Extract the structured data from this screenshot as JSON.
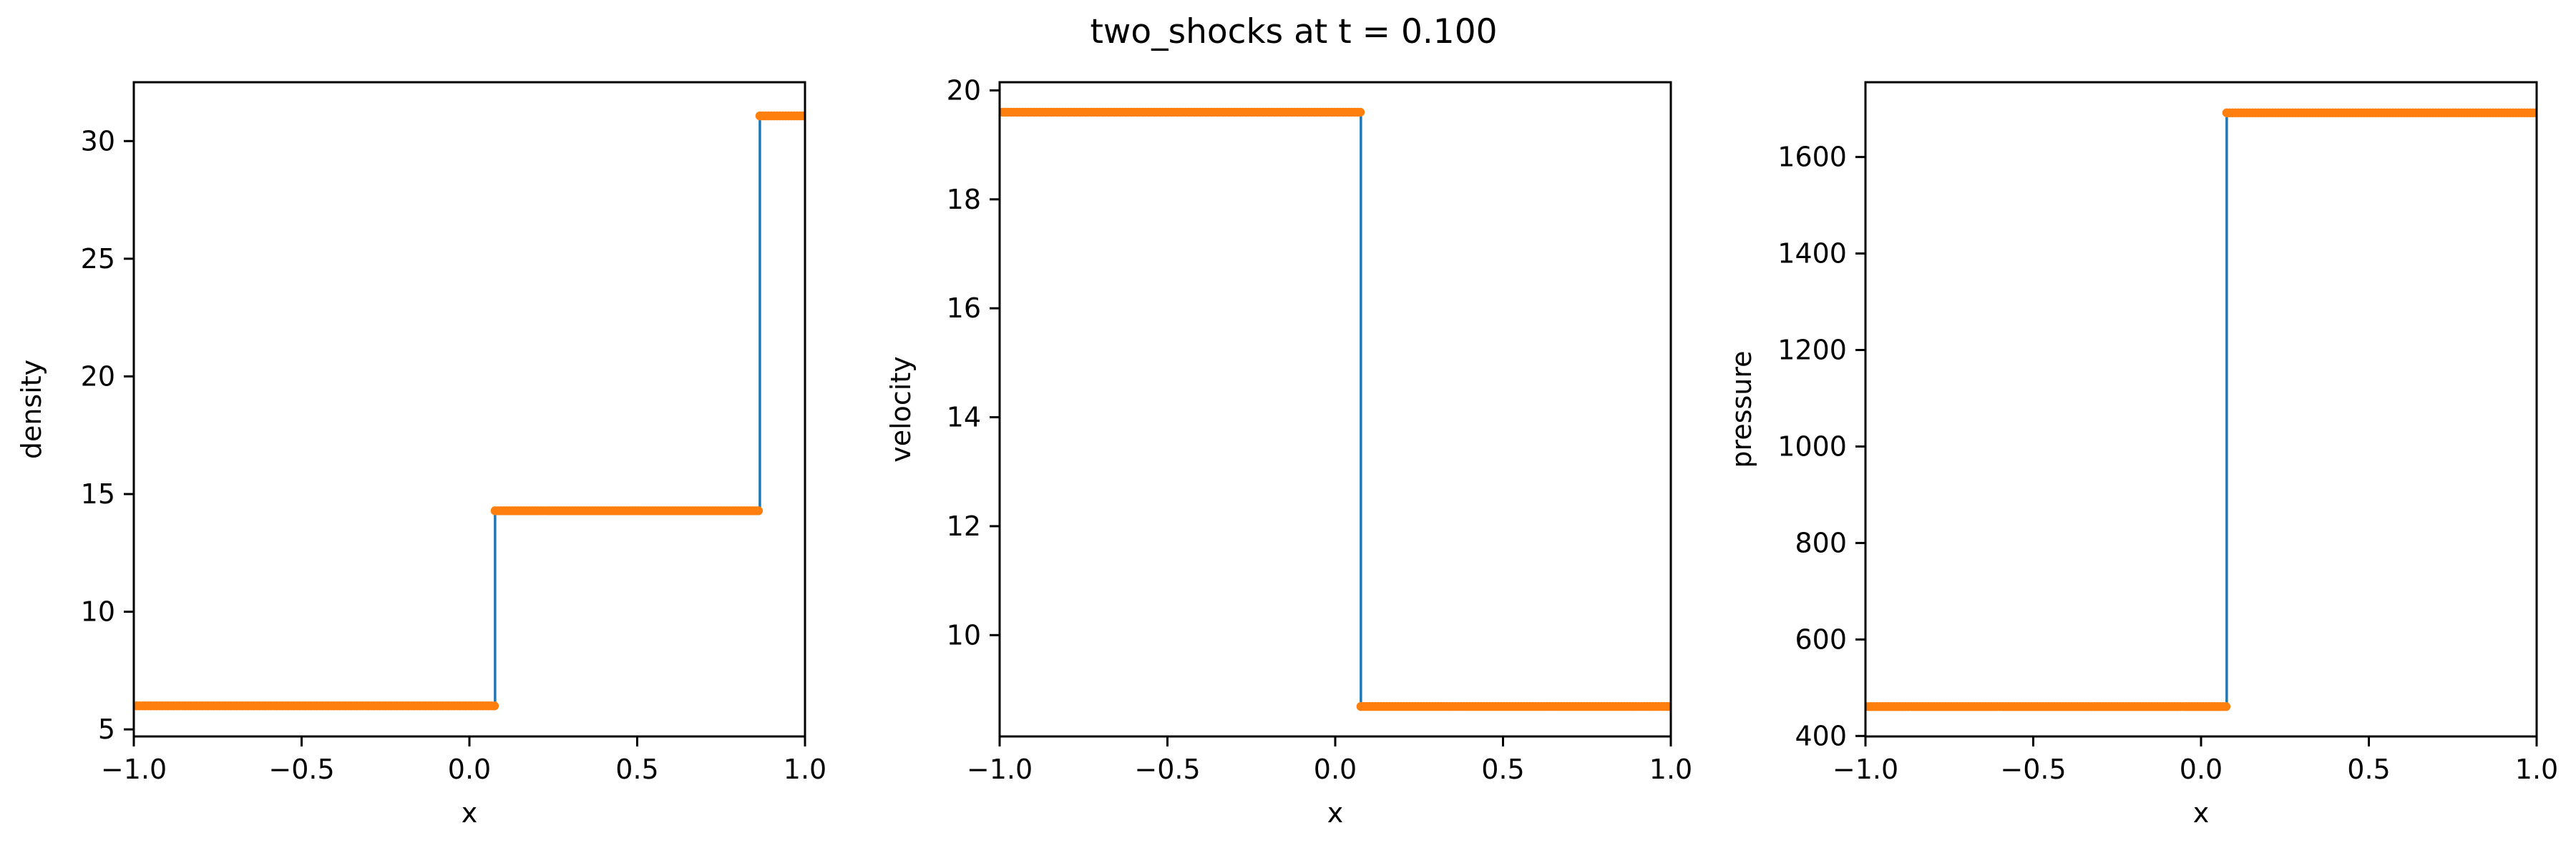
{
  "figure": {
    "title": "two_shocks at t = 0.100"
  },
  "colors": {
    "analytic_line": "#1f77b4",
    "numeric_points": "#ff7f0e",
    "axes": "#000000",
    "background": "#ffffff"
  },
  "chart_data": [
    {
      "type": "line",
      "xlabel": "x",
      "ylabel": "density",
      "xlim": [
        -1.0,
        1.0
      ],
      "ylim": [
        4.7,
        32.5
      ],
      "xticks": [
        -1.0,
        -0.5,
        0.0,
        0.5,
        1.0
      ],
      "xtick_labels": [
        "−1.0",
        "−0.5",
        "0.0",
        "0.5",
        "1.0"
      ],
      "yticks": [
        5,
        10,
        15,
        20,
        25,
        30
      ],
      "ytick_labels": [
        "5",
        "10",
        "15",
        "20",
        "25",
        "30"
      ],
      "series": [
        {
          "style": "line",
          "color": "#1f77b4",
          "x": [
            -1.0,
            0.0765,
            0.0765,
            0.8655,
            0.8655,
            1.0
          ],
          "y": [
            6.0,
            6.0,
            14.29,
            14.29,
            31.07,
            31.07
          ]
        },
        {
          "style": "markers",
          "color": "#ff7f0e",
          "segments": [
            {
              "x_start": -1.0,
              "x_end": 0.0765,
              "y": 6.0
            },
            {
              "x_start": 0.0765,
              "x_end": 0.8655,
              "y": 14.29
            },
            {
              "x_start": 0.8655,
              "x_end": 1.0,
              "y": 31.07
            }
          ]
        }
      ]
    },
    {
      "type": "line",
      "xlabel": "x",
      "ylabel": "velocity",
      "xlim": [
        -1.0,
        1.0
      ],
      "ylim": [
        8.14,
        20.15
      ],
      "xticks": [
        -1.0,
        -0.5,
        0.0,
        0.5,
        1.0
      ],
      "xtick_labels": [
        "−1.0",
        "−0.5",
        "0.0",
        "0.5",
        "1.0"
      ],
      "yticks": [
        10,
        12,
        14,
        16,
        18,
        20
      ],
      "ytick_labels": [
        "10",
        "12",
        "14",
        "16",
        "18",
        "20"
      ],
      "series": [
        {
          "style": "line",
          "color": "#1f77b4",
          "x": [
            -1.0,
            0.0765,
            0.0765,
            1.0
          ],
          "y": [
            19.6,
            19.6,
            8.69,
            8.69
          ]
        },
        {
          "style": "markers",
          "color": "#ff7f0e",
          "segments": [
            {
              "x_start": -1.0,
              "x_end": 0.0765,
              "y": 19.6
            },
            {
              "x_start": 0.0765,
              "x_end": 1.0,
              "y": 8.69
            }
          ]
        }
      ]
    },
    {
      "type": "line",
      "xlabel": "x",
      "ylabel": "pressure",
      "xlim": [
        -1.0,
        1.0
      ],
      "ylim": [
        399,
        1755
      ],
      "xticks": [
        -1.0,
        -0.5,
        0.0,
        0.5,
        1.0
      ],
      "xtick_labels": [
        "−1.0",
        "−0.5",
        "0.0",
        "0.5",
        "1.0"
      ],
      "yticks": [
        400,
        600,
        800,
        1000,
        1200,
        1400,
        1600
      ],
      "ytick_labels": [
        "400",
        "600",
        "800",
        "1000",
        "1200",
        "1400",
        "1600"
      ],
      "series": [
        {
          "style": "line",
          "color": "#1f77b4",
          "x": [
            -1.0,
            0.0765,
            0.0765,
            1.0
          ],
          "y": [
            460.9,
            460.9,
            1691.6,
            1691.6
          ]
        },
        {
          "style": "markers",
          "color": "#ff7f0e",
          "segments": [
            {
              "x_start": -1.0,
              "x_end": 0.0765,
              "y": 460.9
            },
            {
              "x_start": 0.0765,
              "x_end": 1.0,
              "y": 1691.6
            }
          ]
        }
      ]
    }
  ]
}
